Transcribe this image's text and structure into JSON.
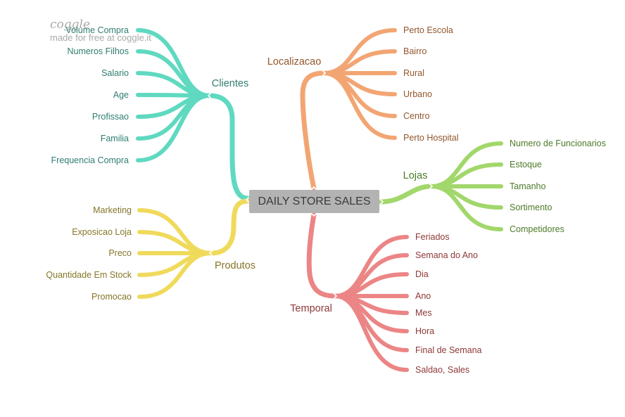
{
  "watermark": {
    "logo": "coggle",
    "tagline": "made for free at coggle.it"
  },
  "center": {
    "label": "DAILY STORE SALES"
  },
  "branches": {
    "clientes": {
      "label": "Clientes",
      "color": "#5fd9c0",
      "text_color": "#2f7d6f",
      "items": [
        "Volume Compra",
        "Numeros Filhos",
        "Salario",
        "Age",
        "Profissao",
        "Familia",
        "Frequencia Compra"
      ]
    },
    "produtos": {
      "label": "Produtos",
      "color": "#f0da5c",
      "text_color": "#847628",
      "items": [
        "Marketing",
        "Exposicao Loja",
        "Preco",
        "Quantidade Em Stock",
        "Promocao"
      ]
    },
    "localizacao": {
      "label": "Localizacao",
      "color": "#f2a573",
      "text_color": "#92562c",
      "items": [
        "Perto Escola",
        "Bairro",
        "Rural",
        "Urbano",
        "Centro",
        "Perto Hospital"
      ]
    },
    "lojas": {
      "label": "Lojas",
      "color": "#a2d76b",
      "text_color": "#4d7a27",
      "items": [
        "Numero de Funcionarios",
        "Estoque",
        "Tamanho",
        "Sortimento",
        "Competidores"
      ]
    },
    "temporal": {
      "label": "Temporal",
      "color": "#ec8585",
      "text_color": "#8e3838",
      "items": [
        "Feriados",
        "Semana do Ano",
        "Dia",
        "Ano",
        "Mes",
        "Hora",
        "Final de Semana",
        "Saldao, Sales"
      ]
    }
  }
}
